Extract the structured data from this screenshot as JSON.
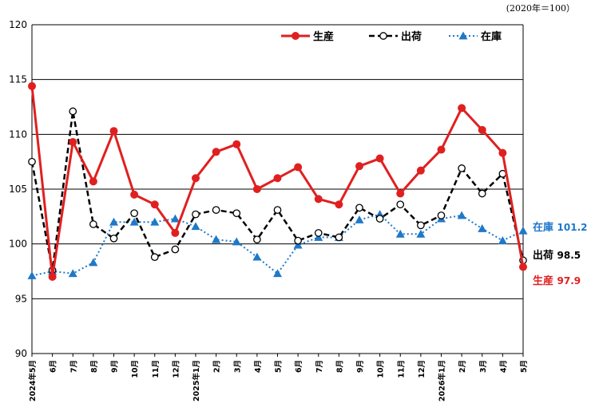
{
  "chart_data": {
    "type": "line",
    "unit_note": "(2020年＝100）",
    "ylim": [
      90,
      120
    ],
    "yticks": [
      90,
      95,
      100,
      105,
      110,
      115,
      120
    ],
    "grid": true,
    "legend_position": "top-right",
    "categories": [
      "2024年5月",
      "6月",
      "7月",
      "8月",
      "9月",
      "10月",
      "11月",
      "12月",
      "2025年1月",
      "2月",
      "3月",
      "4月",
      "5月",
      "6月",
      "7月",
      "8月",
      "9月",
      "10月",
      "11月",
      "12月",
      "2026年1月",
      "2月",
      "3月",
      "4月",
      "5月"
    ],
    "series": [
      {
        "name": "生産",
        "color": "#e02020",
        "style": "solid-circle",
        "values": [
          114.4,
          97.0,
          109.3,
          105.7,
          110.3,
          104.5,
          103.6,
          101.0,
          106.0,
          108.4,
          109.1,
          105.0,
          106.0,
          107.0,
          104.1,
          103.6,
          107.1,
          107.8,
          104.6,
          106.7,
          108.6,
          112.4,
          110.4,
          108.3,
          97.9
        ],
        "end_value_label": "97.9"
      },
      {
        "name": "出荷",
        "color": "#000000",
        "style": "dashed-open-circle",
        "values": [
          107.5,
          97.6,
          112.1,
          101.8,
          100.5,
          102.8,
          98.8,
          99.5,
          102.7,
          103.1,
          102.8,
          100.4,
          103.1,
          100.3,
          101.0,
          100.6,
          103.3,
          102.3,
          103.6,
          101.7,
          102.6,
          106.9,
          104.6,
          106.4,
          98.5
        ],
        "end_value_label": "98.5"
      },
      {
        "name": "在庫",
        "color": "#1f78c8",
        "style": "dotted-triangle",
        "values": [
          97.1,
          97.5,
          97.3,
          98.3,
          102.0,
          102.0,
          102.0,
          102.3,
          101.6,
          100.4,
          100.2,
          98.8,
          97.3,
          99.9,
          100.6,
          100.6,
          102.2,
          102.7,
          100.9,
          100.9,
          102.3,
          102.6,
          101.4,
          100.3,
          101.2
        ],
        "end_value_label": "101.2"
      }
    ]
  }
}
